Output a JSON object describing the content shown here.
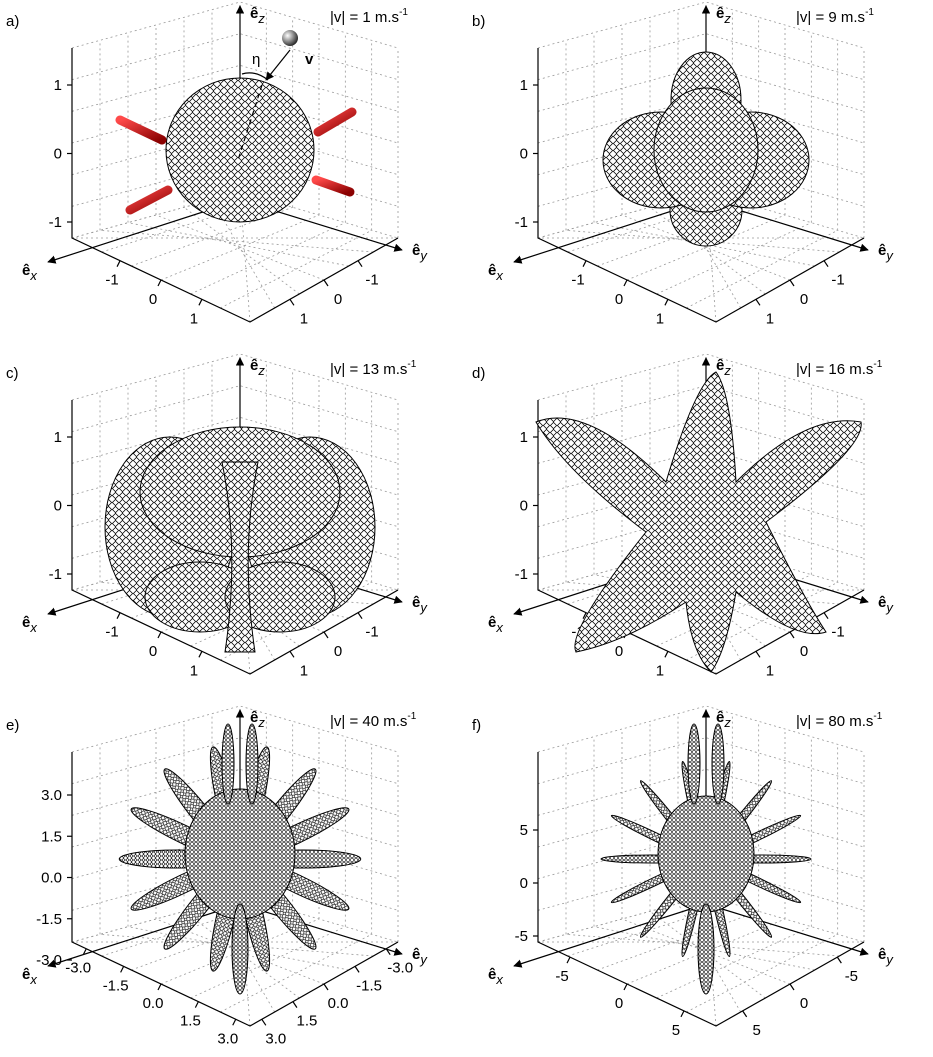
{
  "panels": [
    {
      "label": "a)",
      "speed": "|v| = 1 m.s",
      "speed_exponent": "-1",
      "hat": "ê",
      "x_axis": "x",
      "y_axis": "y",
      "z_axis": "z",
      "z_ticks": [
        "1",
        "0",
        "-1"
      ],
      "x_ticks": [
        "-1",
        "0",
        "1"
      ],
      "y_ticks": [
        "-1",
        "0",
        "1"
      ],
      "eta": "η",
      "v": "v"
    },
    {
      "label": "b)",
      "speed": "|v| = 9 m.s",
      "speed_exponent": "-1",
      "hat": "ê",
      "x_axis": "x",
      "y_axis": "y",
      "z_axis": "z",
      "z_ticks": [
        "1",
        "0",
        "-1"
      ],
      "x_ticks": [
        "-1",
        "0",
        "1"
      ],
      "y_ticks": [
        "-1",
        "0",
        "1"
      ]
    },
    {
      "label": "c)",
      "speed": "|v| = 13 m.s",
      "speed_exponent": "-1",
      "hat": "ê",
      "x_axis": "x",
      "y_axis": "y",
      "z_axis": "z",
      "z_ticks": [
        "1",
        "0",
        "-1"
      ],
      "x_ticks": [
        "-1",
        "0",
        "1"
      ],
      "y_ticks": [
        "-1",
        "0",
        "1"
      ]
    },
    {
      "label": "d)",
      "speed": "|v| = 16 m.s",
      "speed_exponent": "-1",
      "hat": "ê",
      "x_axis": "x",
      "y_axis": "y",
      "z_axis": "z",
      "z_ticks": [
        "1",
        "0",
        "-1"
      ],
      "x_ticks": [
        "-1",
        "0",
        "1"
      ],
      "y_ticks": [
        "-1",
        "0",
        "1"
      ]
    },
    {
      "label": "e)",
      "speed": "|v| = 40 m.s",
      "speed_exponent": "-1",
      "hat": "ê",
      "x_axis": "x",
      "y_axis": "y",
      "z_axis": "z",
      "z_ticks": [
        "3.0",
        "1.5",
        "0.0",
        "-1.5",
        "-3.0"
      ],
      "x_ticks": [
        "-3.0",
        "-1.5",
        "0.0",
        "1.5",
        "3.0"
      ],
      "y_ticks": [
        "-3.0",
        "-1.5",
        "0.0",
        "1.5",
        "3.0"
      ]
    },
    {
      "label": "f)",
      "speed": "|v| = 80 m.s",
      "speed_exponent": "-1",
      "hat": "ê",
      "x_axis": "x",
      "y_axis": "y",
      "z_axis": "z",
      "z_ticks": [
        "5",
        "0",
        "-5"
      ],
      "x_ticks": [
        "-5",
        "0",
        "5"
      ],
      "y_ticks": [
        "-5",
        "0",
        "5"
      ]
    }
  ]
}
